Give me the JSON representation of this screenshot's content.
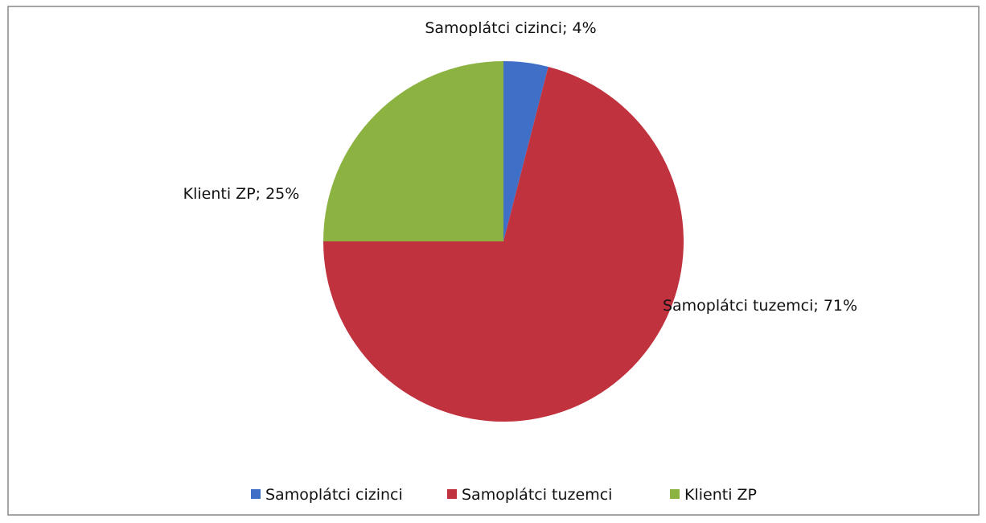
{
  "chart_data": {
    "type": "pie",
    "categories": [
      "Samoplátci cizinci",
      "Samoplátci tuzemci",
      "Klienti ZP"
    ],
    "values": [
      4,
      71,
      25
    ],
    "value_labels": [
      "Samoplátci cizinci; 4%",
      "Samoplátci tuzemci; 71%",
      "Klienti ZP; 25%"
    ],
    "colors": [
      "#3f6fc6",
      "#c1323f",
      "#8cb342"
    ],
    "legend": "bottom"
  }
}
